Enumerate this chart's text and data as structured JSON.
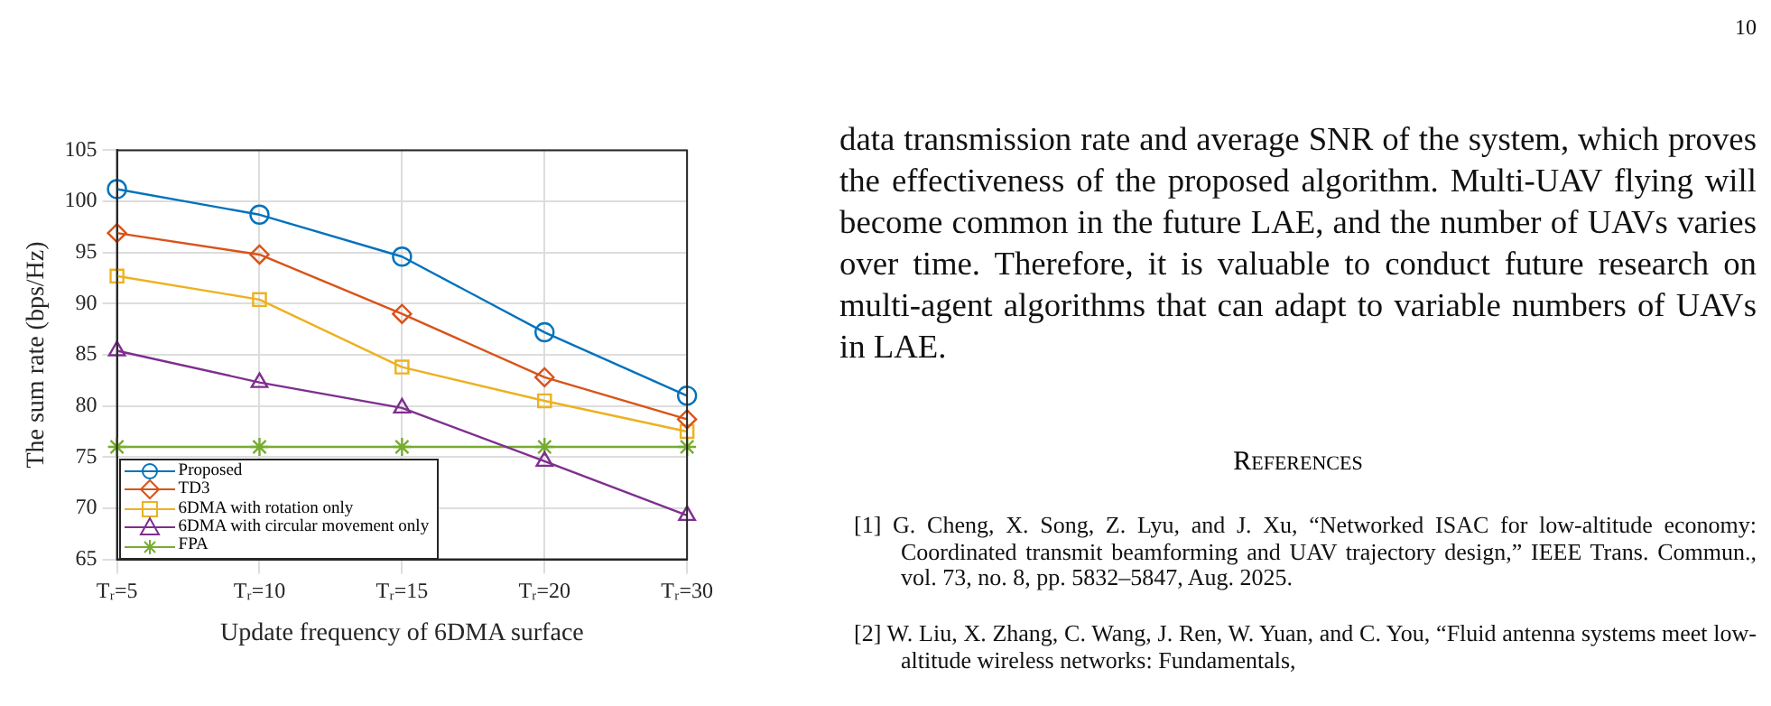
{
  "chart_data": {
    "type": "line",
    "xlabel": "Update frequency of 6DMA surface",
    "ylabel": "The sum rate (bps/Hz)",
    "categories": [
      "Tᵣ=5",
      "Tᵣ=10",
      "Tᵣ=15",
      "Tᵣ=20",
      "Tᵣ=30"
    ],
    "series": [
      {
        "name": "Proposed",
        "color": "#0072bd",
        "marker": "circle",
        "values": [
          101.2,
          98.7,
          94.6,
          87.2,
          81.0
        ]
      },
      {
        "name": "TD3",
        "color": "#d95319",
        "marker": "diamond",
        "values": [
          96.9,
          94.8,
          89.0,
          82.8,
          78.7
        ]
      },
      {
        "name": "6DMA with rotation only",
        "color": "#edb120",
        "marker": "square",
        "values": [
          92.7,
          90.4,
          83.8,
          80.5,
          77.5
        ]
      },
      {
        "name": "6DMA with circular movement only",
        "color": "#7e2f8e",
        "marker": "triangle",
        "values": [
          85.4,
          82.3,
          79.8,
          74.6,
          69.3
        ]
      },
      {
        "name": "FPA",
        "color": "#77ac30",
        "marker": "cross",
        "values": [
          76,
          76,
          76,
          76,
          76
        ]
      }
    ],
    "ylim": [
      65,
      105
    ],
    "yticks": [
      65,
      70,
      75,
      80,
      85,
      90,
      95,
      100,
      105
    ],
    "grid": true,
    "legend": "bottom left",
    "line_style": "solid",
    "annotations": [
      "10",
      "data transmission rate and average SNR of the system, which proves the effectiveness of the proposed algorithm. Multi-UAV flying will become common in the future LAE, and the number of UAVs varies over time. Therefore, it is valuable to conduct future research on multi-agent algorithms that can adapt to variable numbers of UAVs in LAE.",
      "References",
      "[1] G. Cheng, X. Song, Z. Lyu, and J. Xu, “Networked ISAC for low-altitude economy: Coordinated transmit beamforming and UAV trajectory design,” IEEE Trans. Commun., vol. 73, no. 8, pp. 5832–5847, Aug. 2025.",
      "[2] W. Liu, X. Zhang, C. Wang, J. Ren, W. Yuan, and C. You, “Fluid antenna systems meet low-altitude wireless networks: Fundamentals,"
    ]
  }
}
